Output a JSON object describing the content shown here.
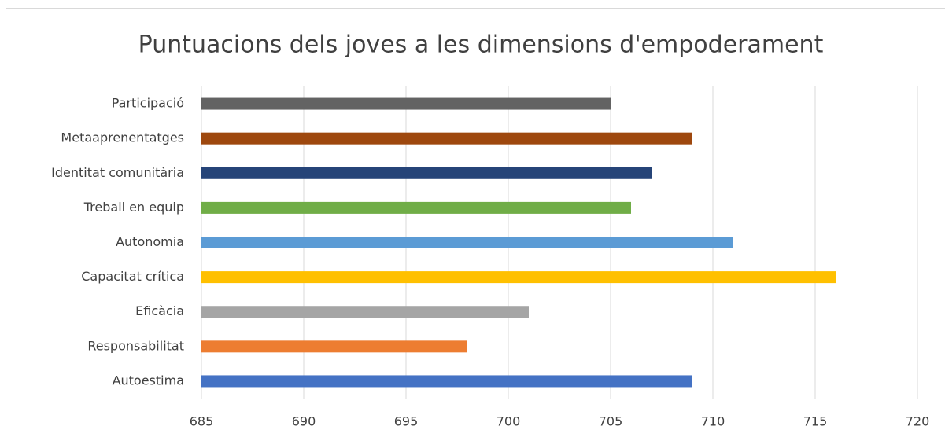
{
  "chart_data": {
    "type": "bar",
    "orientation": "horizontal",
    "title": "Puntuacions dels joves a les dimensions d'empoderament",
    "categories": [
      "Participació",
      "Metaaprenentatges",
      "Identitat comunitària",
      "Treball en equip",
      "Autonomia",
      "Capacitat crítica",
      "Eficàcia",
      "Responsabilitat",
      "Autoestima"
    ],
    "values": [
      705,
      709,
      707,
      706,
      711,
      716,
      701,
      698,
      709
    ],
    "colors": [
      "#636363",
      "#9e480e",
      "#264478",
      "#70ad47",
      "#5b9bd5",
      "#ffc000",
      "#a5a5a5",
      "#ed7d31",
      "#4472c4"
    ],
    "xlim": [
      685,
      720
    ],
    "xticks": [
      685,
      690,
      695,
      700,
      705,
      710,
      715,
      720
    ],
    "grid": true
  }
}
